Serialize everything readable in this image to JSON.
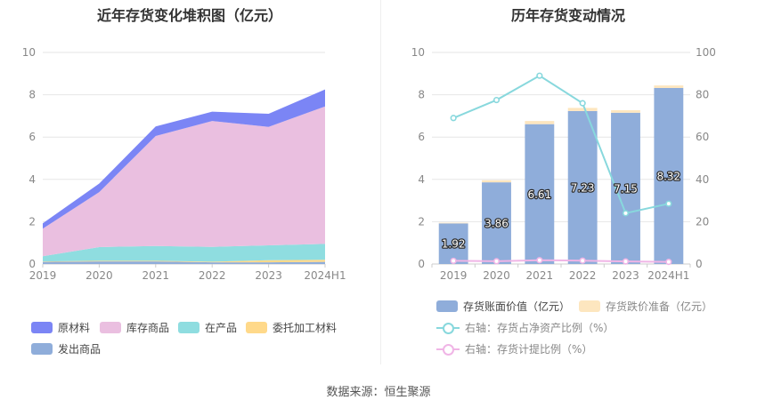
{
  "source_label": "数据来源：恒生聚源",
  "colors": {
    "raw_materials": "#7b85f5",
    "inventory_goods": "#eabfe0",
    "wip": "#8fdde0",
    "consigned": "#ffd98a",
    "shipped": "#8fadda",
    "book_value_bar": "#8fadda",
    "provision_bar": "#fde6bf",
    "ratio_line": "#88d8dd",
    "provision_ratio_line": "#f0b5e6"
  },
  "chart_data": [
    {
      "type": "area",
      "stacked": true,
      "title": "近年存货变化堆积图（亿元）",
      "categories": [
        "2019",
        "2020",
        "2021",
        "2022",
        "2023",
        "2024H1"
      ],
      "ylim": [
        0,
        10
      ],
      "yticks": [
        0,
        2,
        4,
        6,
        8,
        10
      ],
      "grid": true,
      "legend_position": "bottom",
      "series": [
        {
          "name": "发出商品",
          "key": "shipped",
          "values": [
            0.1,
            0.12,
            0.12,
            0.08,
            0.08,
            0.1
          ]
        },
        {
          "name": "委托加工材料",
          "key": "consigned",
          "values": [
            0.02,
            0.03,
            0.03,
            0.03,
            0.1,
            0.1
          ]
        },
        {
          "name": "在产品",
          "key": "wip",
          "values": [
            0.25,
            0.65,
            0.7,
            0.7,
            0.7,
            0.75
          ]
        },
        {
          "name": "库存商品",
          "key": "inventory_goods",
          "values": [
            1.3,
            2.6,
            5.2,
            5.95,
            5.6,
            6.5
          ]
        },
        {
          "name": "原材料",
          "key": "raw_materials",
          "values": [
            0.25,
            0.4,
            0.45,
            0.44,
            0.62,
            0.8
          ]
        }
      ],
      "legend_order": [
        "原材料",
        "库存商品",
        "在产品",
        "委托加工材料",
        "发出商品"
      ]
    },
    {
      "type": "bar",
      "stacked": true,
      "title": "历年存货变动情况",
      "categories": [
        "2019",
        "2020",
        "2021",
        "2022",
        "2023",
        "2024H1"
      ],
      "ylim": [
        0,
        10
      ],
      "yticks": [
        0,
        2,
        4,
        6,
        8,
        10
      ],
      "y2lim": [
        0,
        100
      ],
      "y2ticks": [
        0,
        20,
        40,
        60,
        80,
        100
      ],
      "grid": true,
      "legend_position": "bottom",
      "series": [
        {
          "name": "存货账面价值（亿元）",
          "axis": "left",
          "kind": "bar",
          "values": [
            1.92,
            3.86,
            6.61,
            7.23,
            7.15,
            8.32
          ],
          "labels": [
            "1.92",
            "3.86",
            "6.61",
            "7.23",
            "7.15",
            "8.32"
          ]
        },
        {
          "name": "存货跌价准备（亿元）",
          "axis": "left",
          "kind": "bar",
          "values": [
            0.03,
            0.1,
            0.15,
            0.15,
            0.12,
            0.12
          ]
        },
        {
          "name": "右轴：存货占净资产比例（%）",
          "axis": "right",
          "kind": "line",
          "values": [
            69,
            77.5,
            89,
            76,
            24,
            28.5
          ]
        },
        {
          "name": "右轴：存货计提比例（%）",
          "axis": "right",
          "kind": "line",
          "values": [
            1.5,
            1.3,
            1.8,
            1.6,
            1.2,
            1.0
          ]
        }
      ]
    }
  ]
}
